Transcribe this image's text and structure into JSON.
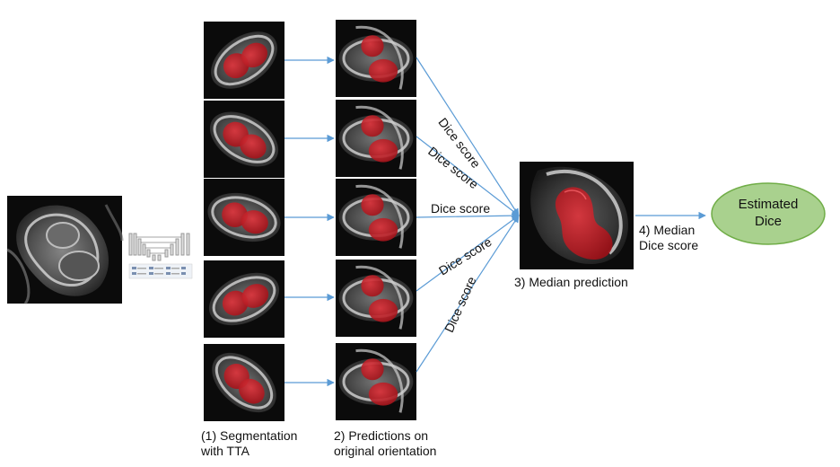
{
  "stages": {
    "input_image": {
      "icon": "mri-slice-icon"
    },
    "network": {
      "icon": "unet-architecture-icon"
    },
    "step1": {
      "line1": "(1) Segmentation",
      "line2": "with TTA",
      "count": 5
    },
    "step2": {
      "line1": "2) Predictions on",
      "line2": "original orientation",
      "count": 5
    },
    "step3": {
      "label": "3) Median prediction"
    },
    "step4": {
      "line1": "4) Median",
      "line2": "Dice score"
    },
    "result": {
      "line1": "Estimated",
      "line2": "Dice"
    }
  },
  "edge_labels": [
    "Dice score",
    "Dice score",
    "Dice score",
    "Dice score",
    "Dice score"
  ],
  "colors": {
    "arrow": "#5b9bd5",
    "overlay": "#c0141c",
    "ellipse_fill": "#a9d18e",
    "ellipse_stroke": "#70ad47",
    "scan_bg": "#0b0b0b"
  }
}
